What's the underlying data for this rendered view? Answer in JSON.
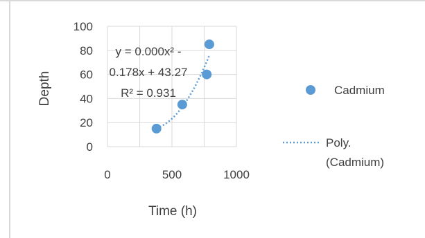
{
  "chart_data": {
    "type": "scatter",
    "xlabel": "Time (h)",
    "ylabel": "Depth",
    "xlim": [
      0,
      1000
    ],
    "ylim": [
      0,
      100
    ],
    "xticks": [
      0,
      500,
      1000
    ],
    "yticks": [
      0,
      20,
      40,
      60,
      80,
      100
    ],
    "grid": true,
    "legend_position": "right",
    "series": [
      {
        "name": "Cadmium",
        "color": "#5b9bd5",
        "x": [
          380,
          580,
          770,
          790
        ],
        "y": [
          15,
          35,
          60,
          85
        ]
      }
    ],
    "trendline": {
      "name": "Poly. (Cadmium)",
      "kind": "polynomial",
      "degree": 2,
      "coefficients": [
        0.0,
        -0.178,
        43.27
      ],
      "equation_text": "y = 0.000x² - 0.178x + 43.27",
      "r2_text": "R² = 0.931",
      "color": "#5b9bd5"
    },
    "legend": [
      {
        "label": "Cadmium",
        "marker": "dot"
      },
      {
        "label_line1": "Poly.",
        "label_line2": "(Cadmium)",
        "marker": "dotted-line"
      }
    ]
  }
}
